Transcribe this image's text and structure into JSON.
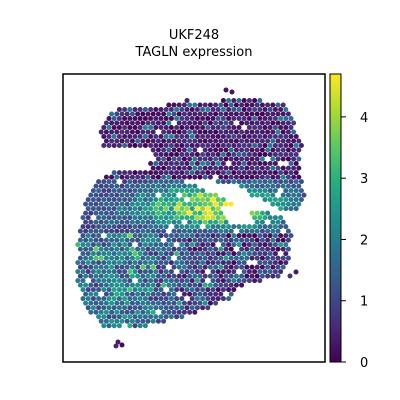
{
  "chart_data": {
    "type": "heatmap",
    "title_line1": "UKF248",
    "title_line2": "TAGLN expression",
    "xlabel": "",
    "ylabel": "",
    "colorbar": {
      "label": "",
      "range": [
        0,
        4.7
      ],
      "ticks": [
        "0",
        "1",
        "2",
        "3",
        "4"
      ],
      "colormap": "viridis",
      "stops": [
        "#440154",
        "#472c7a",
        "#3b518b",
        "#2c718e",
        "#21908d",
        "#27ad81",
        "#5cc863",
        "#aadc32",
        "#fde725"
      ]
    },
    "grid": false,
    "spots": {
      "description": "hexagonal spatial transcriptomics spots, mostly low expression (0-1) with a band of high expression (3-4.7) across the middle"
    }
  }
}
